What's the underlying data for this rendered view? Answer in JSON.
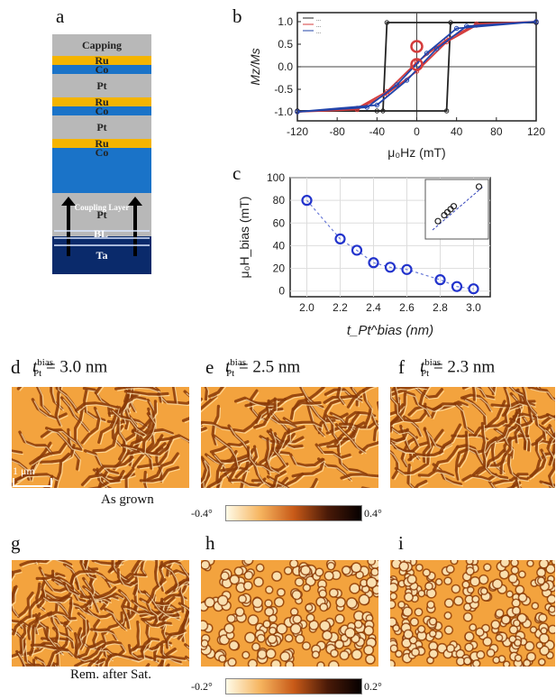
{
  "panel_labels": {
    "a": "a",
    "b": "b",
    "c": "c",
    "d": "d",
    "e": "e",
    "f": "f",
    "g": "g",
    "h": "h",
    "i": "i"
  },
  "stack": {
    "layers": [
      {
        "label": "Capping",
        "color": "#b8b8b8",
        "h": 24
      },
      {
        "label": "Ru",
        "color": "#f4b400",
        "h": 10
      },
      {
        "label": "Co",
        "color": "#1a73c8",
        "h": 10
      },
      {
        "label": "Pt",
        "color": "#b8b8b8",
        "h": 26
      },
      {
        "label": "Ru",
        "color": "#f4b400",
        "h": 10
      },
      {
        "label": "Co",
        "color": "#1a73c8",
        "h": 10
      },
      {
        "label": "Pt",
        "color": "#b8b8b8",
        "h": 26
      },
      {
        "label": "Ru",
        "color": "#f4b400",
        "h": 10
      },
      {
        "label": "Co",
        "color": "#1a73c8",
        "h": 10
      },
      {
        "label": "",
        "color": "#1a73c8",
        "h": 40
      },
      {
        "label": "Pt",
        "color": "#b8b8b8",
        "h": 48
      },
      {
        "label": "Ta",
        "color": "#0a2a6b",
        "h": 42
      }
    ],
    "coupling_label": "Coupling Layer",
    "bl_label": "BL"
  },
  "chart_data": [
    {
      "type": "line",
      "panel": "b",
      "xlabel": "μ₀Hz (mT)",
      "ylabel": "Mz/Ms",
      "xlim": [
        -120,
        120
      ],
      "ylim": [
        -1.2,
        1.2
      ],
      "xticks": [
        -120,
        -80,
        -40,
        0,
        40,
        80,
        120
      ],
      "yticks": [
        -1.0,
        -0.5,
        0.0,
        0.5,
        1.0
      ],
      "series": [
        {
          "color": "#222222",
          "values": [
            [
              -120,
              -0.98
            ],
            [
              -40,
              -0.98
            ],
            [
              30,
              -0.98
            ],
            [
              34,
              0.98
            ],
            [
              120,
              0.98
            ]
          ]
        },
        {
          "color": "#222222",
          "values": [
            [
              120,
              0.98
            ],
            [
              -30,
              0.98
            ],
            [
              -34,
              -0.98
            ],
            [
              -120,
              -0.98
            ]
          ]
        },
        {
          "color": "#d43c3c",
          "values": [
            [
              -120,
              -1.0
            ],
            [
              -60,
              -0.95
            ],
            [
              -30,
              -0.6
            ],
            [
              0,
              -0.1
            ],
            [
              30,
              0.55
            ],
            [
              60,
              0.92
            ],
            [
              120,
              1.0
            ]
          ]
        },
        {
          "color": "#d43c3c",
          "values": [
            [
              120,
              1.0
            ],
            [
              60,
              0.95
            ],
            [
              30,
              0.6
            ],
            [
              0,
              0.1
            ],
            [
              -30,
              -0.55
            ],
            [
              -60,
              -0.92
            ],
            [
              -120,
              -1.0
            ]
          ]
        },
        {
          "color": "#2244aa",
          "values": [
            [
              -120,
              -1.0
            ],
            [
              -50,
              -0.9
            ],
            [
              -20,
              -0.4
            ],
            [
              10,
              0.3
            ],
            [
              40,
              0.85
            ],
            [
              120,
              1.0
            ]
          ]
        },
        {
          "color": "#2244aa",
          "values": [
            [
              120,
              1.0
            ],
            [
              50,
              0.9
            ],
            [
              20,
              0.4
            ],
            [
              -10,
              -0.3
            ],
            [
              -40,
              -0.85
            ],
            [
              -120,
              -1.0
            ]
          ]
        }
      ],
      "legend": [
        "...",
        "...",
        "..."
      ]
    },
    {
      "type": "scatter",
      "panel": "c",
      "xlabel": "t_Pt^bias (nm)",
      "ylabel": "μ₀H_bias (mT)",
      "xlim": [
        1.9,
        3.1
      ],
      "ylim": [
        -5,
        100
      ],
      "xticks": [
        2.0,
        2.2,
        2.4,
        2.6,
        2.8,
        3.0
      ],
      "yticks": [
        0,
        20,
        40,
        60,
        80,
        100
      ],
      "x": [
        2.0,
        2.2,
        2.3,
        2.4,
        2.5,
        2.6,
        2.8,
        2.9,
        3.0
      ],
      "values": [
        80,
        46,
        36,
        25,
        21,
        19,
        10,
        4,
        2
      ]
    }
  ],
  "maps": [
    {
      "id": "d",
      "title_prefix": "t",
      "title_sup": "bias",
      "title_sub": "Pt",
      "title_value": "= 3.0 nm",
      "seed": 1,
      "scale": 13,
      "mode": "labyrinth",
      "base": "#f3a33e",
      "dark": "#8a3a08",
      "light": "#ffe8b8"
    },
    {
      "id": "e",
      "title_prefix": "t",
      "title_sup": "bias",
      "title_sub": "Pt",
      "title_value": "= 2.5 nm",
      "seed": 2,
      "scale": 12,
      "mode": "labyrinth",
      "base": "#f3a33e",
      "dark": "#8a3a08",
      "light": "#ffe8b8"
    },
    {
      "id": "f",
      "title_prefix": "t",
      "title_sup": "bias",
      "title_sub": "Pt",
      "title_value": "= 2.3 nm",
      "seed": 3,
      "scale": 11,
      "mode": "labyrinth",
      "base": "#f3a33e",
      "dark": "#8a3a08",
      "light": "#ffe8b8"
    },
    {
      "id": "g",
      "seed": 4,
      "scale": 9,
      "mode": "labyrinth",
      "base": "#f3a33e",
      "dark": "#8a3a08",
      "light": "#ffe8b8"
    },
    {
      "id": "h",
      "seed": 5,
      "scale": 10,
      "mode": "bubble",
      "base": "#f3a33e",
      "dark": "#8a3a08",
      "light": "#ffe8b8"
    },
    {
      "id": "i",
      "seed": 6,
      "scale": 9,
      "mode": "bubble",
      "base": "#f3a33e",
      "dark": "#8a3a08",
      "light": "#ffe8b8"
    }
  ],
  "scale_bar": "1 μm",
  "as_grown": "As grown",
  "rem_after_sat": "Rem. after Sat.",
  "colorbar1": {
    "min": "-0.4°",
    "max": "0.4°"
  },
  "colorbar2": {
    "min": "-0.2°",
    "max": "0.2°"
  }
}
